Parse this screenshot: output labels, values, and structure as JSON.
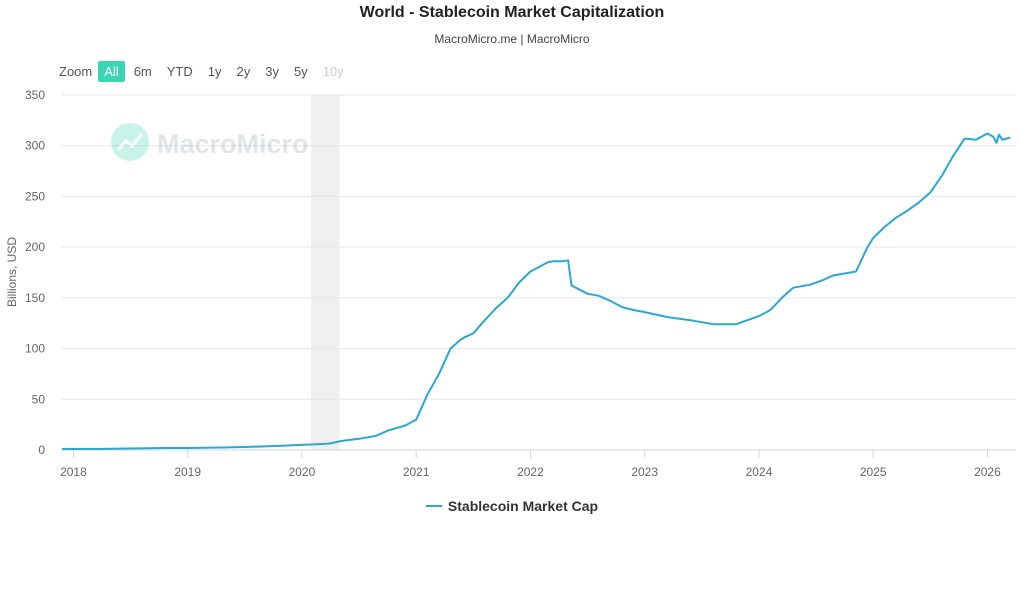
{
  "header": {
    "title": "World - Stablecoin Market Capitalization",
    "subtitle": "MacroMicro.me | MacroMicro"
  },
  "zoom": {
    "label": "Zoom",
    "options": [
      "All",
      "6m",
      "YTD",
      "1y",
      "2y",
      "3y",
      "5y",
      "10y"
    ],
    "active": "All",
    "disabled": [
      "10y"
    ]
  },
  "watermark": {
    "text": "MacroMicro"
  },
  "colors": {
    "series": "#2aa8d0",
    "accent": "#3bd5b1",
    "grid": "#e6e6e6",
    "band": "#efefef"
  },
  "chart_data": {
    "type": "line",
    "title": "World - Stablecoin Market Capitalization",
    "ylabel": "Billions, USD",
    "xlabel": "",
    "ylim": [
      0,
      350
    ],
    "yticks": [
      0,
      50,
      100,
      150,
      200,
      250,
      300,
      350
    ],
    "xlim": [
      2017.9,
      2026.25
    ],
    "xticks": [
      "2018",
      "2019",
      "2020",
      "2021",
      "2022",
      "2023",
      "2024",
      "2025",
      "2026"
    ],
    "shaded_region": {
      "start": 2020.08,
      "end": 2020.33
    },
    "legend": "bottom-center",
    "series": [
      {
        "name": "Stablecoin Market Cap",
        "x": [
          2017.9,
          2018.2,
          2018.5,
          2018.8,
          2019.0,
          2019.3,
          2019.5,
          2019.8,
          2020.0,
          2020.2,
          2020.25,
          2020.35,
          2020.5,
          2020.65,
          2020.75,
          2020.9,
          2021.0,
          2021.1,
          2021.2,
          2021.3,
          2021.38,
          2021.42,
          2021.5,
          2021.6,
          2021.7,
          2021.8,
          2021.9,
          2022.0,
          2022.1,
          2022.15,
          2022.2,
          2022.28,
          2022.33,
          2022.36,
          2022.38,
          2022.5,
          2022.6,
          2022.7,
          2022.8,
          2022.9,
          2023.0,
          2023.2,
          2023.4,
          2023.6,
          2023.7,
          2023.8,
          2023.9,
          2024.0,
          2024.1,
          2024.2,
          2024.3,
          2024.45,
          2024.55,
          2024.65,
          2024.85,
          2024.95,
          2025.0,
          2025.1,
          2025.2,
          2025.3,
          2025.4,
          2025.5,
          2025.6,
          2025.7,
          2025.8,
          2025.9,
          2026.0,
          2026.05,
          2026.08,
          2026.1,
          2026.13,
          2026.2
        ],
        "values": [
          1,
          1,
          1.5,
          2,
          2,
          2.5,
          3,
          4,
          5,
          6,
          6.5,
          9,
          11,
          14,
          19,
          24,
          30,
          55,
          75,
          100,
          108,
          111,
          115,
          128,
          140,
          150,
          165,
          176,
          182,
          185,
          186,
          186,
          187,
          162,
          161,
          154,
          152,
          147,
          141,
          138,
          136,
          131,
          128,
          124,
          124,
          124,
          128,
          132,
          138,
          150,
          160,
          163,
          167,
          172,
          176,
          200,
          209,
          220,
          229,
          236,
          244,
          254,
          270,
          290,
          307,
          306,
          312,
          309,
          303,
          311,
          306,
          308
        ]
      }
    ]
  }
}
